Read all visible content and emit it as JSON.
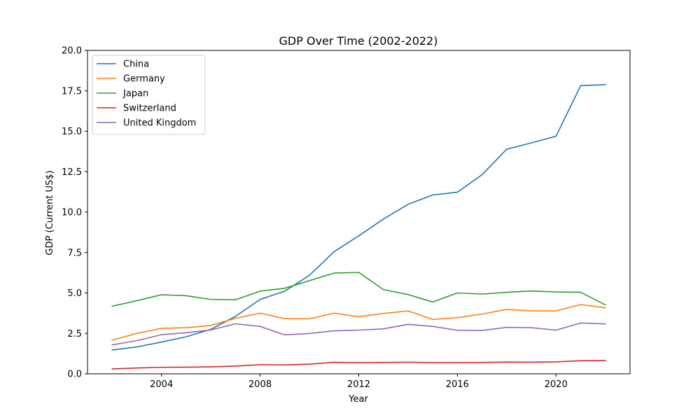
{
  "chart_data": {
    "type": "line",
    "title": "GDP Over Time (2002-2022)",
    "xlabel": "Year",
    "ylabel": "GDP (Current US$)",
    "xlim": [
      2001.0,
      2023.0
    ],
    "ylim": [
      0,
      20
    ],
    "xticks": [
      2004,
      2008,
      2012,
      2016,
      2020
    ],
    "xtick_labels": [
      "2004",
      "2008",
      "2012",
      "2016",
      "2020"
    ],
    "yticks": [
      0,
      2.5,
      5,
      7.5,
      10,
      12.5,
      15,
      17.5,
      20
    ],
    "ytick_labels": [
      "0.0",
      "2.5",
      "5.0",
      "7.5",
      "10.0",
      "12.5",
      "15.0",
      "17.5",
      "20.0"
    ],
    "grid": false,
    "legend_position": "top-left",
    "x": [
      2002,
      2003,
      2004,
      2005,
      2006,
      2007,
      2008,
      2009,
      2010,
      2011,
      2012,
      2013,
      2014,
      2015,
      2016,
      2017,
      2018,
      2019,
      2020,
      2021,
      2022
    ],
    "series": [
      {
        "name": "China",
        "color": "#1f77b4",
        "values": [
          1.47,
          1.66,
          1.96,
          2.29,
          2.75,
          3.55,
          4.6,
          5.11,
          6.09,
          7.55,
          8.53,
          9.57,
          10.48,
          11.06,
          11.23,
          12.31,
          13.89,
          14.28,
          14.69,
          17.82,
          17.88
        ]
      },
      {
        "name": "Germany",
        "color": "#ff7f0e",
        "values": [
          2.08,
          2.5,
          2.81,
          2.85,
          2.99,
          3.43,
          3.75,
          3.41,
          3.4,
          3.75,
          3.53,
          3.73,
          3.89,
          3.36,
          3.47,
          3.69,
          3.98,
          3.89,
          3.89,
          4.28,
          4.08
        ]
      },
      {
        "name": "Japan",
        "color": "#2ca02c",
        "values": [
          4.18,
          4.52,
          4.89,
          4.83,
          4.6,
          4.58,
          5.11,
          5.29,
          5.76,
          6.23,
          6.27,
          5.21,
          4.9,
          4.44,
          5.0,
          4.93,
          5.04,
          5.12,
          5.06,
          5.04,
          4.26
        ]
      },
      {
        "name": "Switzerland",
        "color": "#d62728",
        "values": [
          0.3,
          0.36,
          0.4,
          0.41,
          0.43,
          0.48,
          0.56,
          0.55,
          0.6,
          0.71,
          0.69,
          0.7,
          0.72,
          0.69,
          0.69,
          0.7,
          0.73,
          0.72,
          0.74,
          0.81,
          0.82
        ]
      },
      {
        "name": "United Kingdom",
        "color": "#9467bd",
        "values": [
          1.79,
          2.05,
          2.42,
          2.54,
          2.71,
          3.09,
          2.93,
          2.41,
          2.49,
          2.66,
          2.7,
          2.78,
          3.06,
          2.93,
          2.69,
          2.68,
          2.87,
          2.85,
          2.7,
          3.14,
          3.09
        ]
      }
    ]
  }
}
